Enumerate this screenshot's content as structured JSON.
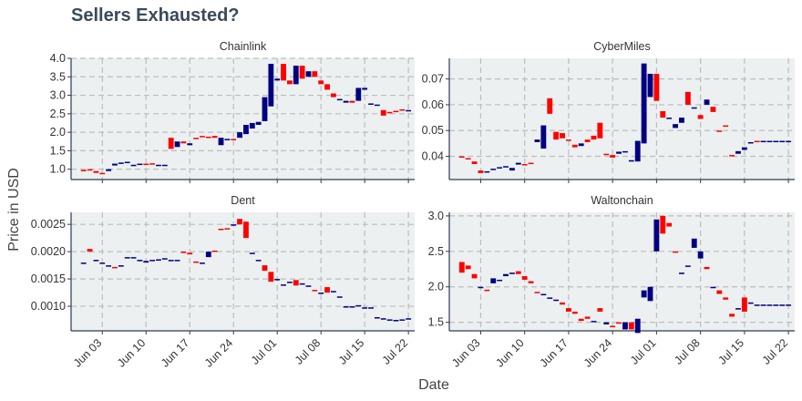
{
  "title": "Sellers Exhausted?",
  "colors": {
    "up": "#000080",
    "down": "#ff0000",
    "panel_bg": "#ecf0f1",
    "grid": "#bdbdbd",
    "axis": "#2c3e50"
  },
  "chart_data": {
    "type": "candlestick",
    "xlabel": "Date",
    "ylabel": "Price in USD",
    "grid": true,
    "x_range": [
      "2018-05-29",
      "2018-07-23"
    ],
    "x_ticks": [
      "Jun 03",
      "Jun 10",
      "Jun 17",
      "Jun 24",
      "Jul 01",
      "Jul 08",
      "Jul 15",
      "Jul 22"
    ],
    "panels": [
      {
        "name": "Chainlink",
        "ylim": [
          0.72,
          4.0
        ],
        "yticks": [
          "1.0",
          "1.5",
          "2.0",
          "2.5",
          "3.0",
          "3.5",
          "4.0"
        ],
        "dates": [
          "2018-05-31",
          "2018-06-01",
          "2018-06-02",
          "2018-06-03",
          "2018-06-04",
          "2018-06-05",
          "2018-06-06",
          "2018-06-07",
          "2018-06-08",
          "2018-06-09",
          "2018-06-10",
          "2018-06-11",
          "2018-06-12",
          "2018-06-13",
          "2018-06-14",
          "2018-06-15",
          "2018-06-16",
          "2018-06-17",
          "2018-06-18",
          "2018-06-19",
          "2018-06-20",
          "2018-06-21",
          "2018-06-22",
          "2018-06-23",
          "2018-06-24",
          "2018-06-25",
          "2018-06-26",
          "2018-06-27",
          "2018-06-28",
          "2018-06-29",
          "2018-06-30",
          "2018-07-01",
          "2018-07-02",
          "2018-07-03",
          "2018-07-04",
          "2018-07-05",
          "2018-07-06",
          "2018-07-07",
          "2018-07-08",
          "2018-07-09",
          "2018-07-10",
          "2018-07-11",
          "2018-07-12",
          "2018-07-13",
          "2018-07-14",
          "2018-07-15",
          "2018-07-16",
          "2018-07-17",
          "2018-07-18",
          "2018-07-19",
          "2018-07-20",
          "2018-07-21",
          "2018-07-22"
        ],
        "open": [
          0.98,
          1.0,
          0.95,
          0.9,
          0.95,
          1.1,
          1.15,
          1.18,
          1.1,
          1.13,
          1.15,
          1.16,
          1.12,
          1.1,
          1.85,
          1.6,
          1.75,
          1.65,
          1.85,
          1.9,
          1.88,
          1.9,
          1.65,
          1.8,
          1.82,
          1.85,
          1.95,
          2.1,
          2.2,
          2.3,
          2.7,
          3.4,
          3.85,
          3.4,
          3.3,
          3.8,
          3.5,
          3.65,
          3.4,
          3.3,
          3.05,
          2.9,
          2.8,
          2.85,
          2.85,
          3.15,
          2.78,
          2.75,
          2.6,
          2.55,
          2.58,
          2.62,
          2.6
        ],
        "close": [
          0.96,
          0.97,
          0.9,
          0.88,
          1.0,
          1.15,
          1.18,
          1.2,
          1.12,
          1.15,
          1.13,
          1.14,
          1.12,
          1.12,
          1.55,
          1.75,
          1.7,
          1.7,
          1.82,
          1.87,
          1.85,
          1.85,
          1.85,
          1.82,
          1.8,
          2.0,
          2.2,
          2.25,
          2.28,
          2.95,
          3.85,
          3.45,
          3.4,
          3.3,
          3.8,
          3.45,
          3.65,
          3.5,
          3.3,
          3.15,
          2.95,
          2.9,
          2.85,
          2.8,
          3.2,
          3.2,
          2.78,
          2.75,
          2.45,
          2.52,
          2.55,
          2.6,
          2.6
        ]
      },
      {
        "name": "CyberMiles",
        "ylim": [
          0.031,
          0.078
        ],
        "yticks": [
          "0.04",
          "0.05",
          "0.06",
          "0.07"
        ],
        "dates": [
          "2018-05-31",
          "2018-06-01",
          "2018-06-02",
          "2018-06-03",
          "2018-06-04",
          "2018-06-05",
          "2018-06-06",
          "2018-06-07",
          "2018-06-08",
          "2018-06-09",
          "2018-06-10",
          "2018-06-11",
          "2018-06-12",
          "2018-06-13",
          "2018-06-14",
          "2018-06-15",
          "2018-06-16",
          "2018-06-17",
          "2018-06-18",
          "2018-06-19",
          "2018-06-20",
          "2018-06-21",
          "2018-06-22",
          "2018-06-23",
          "2018-06-24",
          "2018-06-25",
          "2018-06-26",
          "2018-06-27",
          "2018-06-28",
          "2018-06-29",
          "2018-06-30",
          "2018-07-01",
          "2018-07-02",
          "2018-07-03",
          "2018-07-04",
          "2018-07-05",
          "2018-07-06",
          "2018-07-07",
          "2018-07-08",
          "2018-07-09",
          "2018-07-10",
          "2018-07-11",
          "2018-07-12",
          "2018-07-13",
          "2018-07-14",
          "2018-07-15",
          "2018-07-16",
          "2018-07-17",
          "2018-07-18",
          "2018-07-19",
          "2018-07-20",
          "2018-07-21",
          "2018-07-22"
        ],
        "open": [
          0.04,
          0.0393,
          0.038,
          0.0345,
          0.034,
          0.035,
          0.0355,
          0.036,
          0.0345,
          0.0368,
          0.037,
          0.0375,
          0.0455,
          0.043,
          0.0625,
          0.0495,
          0.049,
          0.0465,
          0.0445,
          0.044,
          0.0465,
          0.048,
          0.053,
          0.041,
          0.0405,
          0.041,
          0.0415,
          0.038,
          0.038,
          0.045,
          0.063,
          0.072,
          0.0575,
          0.055,
          0.051,
          0.053,
          0.065,
          0.059,
          0.056,
          0.06,
          0.0592,
          0.05,
          0.052,
          0.0405,
          0.041,
          0.0425,
          0.045,
          0.046,
          0.046,
          0.046,
          0.046,
          0.046,
          0.046
        ],
        "close": [
          0.0398,
          0.0388,
          0.037,
          0.0335,
          0.0342,
          0.0352,
          0.0358,
          0.0362,
          0.0355,
          0.0375,
          0.0365,
          0.037,
          0.0465,
          0.052,
          0.0565,
          0.0465,
          0.047,
          0.046,
          0.0435,
          0.045,
          0.0455,
          0.0465,
          0.047,
          0.0405,
          0.0395,
          0.0418,
          0.042,
          0.0385,
          0.046,
          0.076,
          0.072,
          0.0615,
          0.055,
          0.055,
          0.0525,
          0.055,
          0.06,
          0.059,
          0.0545,
          0.062,
          0.0572,
          0.0495,
          0.0515,
          0.04,
          0.042,
          0.0435,
          0.0455,
          0.0458,
          0.046,
          0.046,
          0.046,
          0.046,
          0.046
        ]
      },
      {
        "name": "Dent",
        "ylim": [
          0.00055,
          0.00272
        ],
        "yticks": [
          "0.0010",
          "0.0015",
          "0.0020",
          "0.0025"
        ],
        "dates": [
          "2018-05-31",
          "2018-06-01",
          "2018-06-02",
          "2018-06-03",
          "2018-06-04",
          "2018-06-05",
          "2018-06-06",
          "2018-06-07",
          "2018-06-08",
          "2018-06-09",
          "2018-06-10",
          "2018-06-11",
          "2018-06-12",
          "2018-06-13",
          "2018-06-14",
          "2018-06-15",
          "2018-06-16",
          "2018-06-17",
          "2018-06-18",
          "2018-06-19",
          "2018-06-20",
          "2018-06-21",
          "2018-06-22",
          "2018-06-23",
          "2018-06-24",
          "2018-06-25",
          "2018-06-26",
          "2018-06-27",
          "2018-06-28",
          "2018-06-29",
          "2018-06-30",
          "2018-07-01",
          "2018-07-02",
          "2018-07-03",
          "2018-07-04",
          "2018-07-05",
          "2018-07-06",
          "2018-07-07",
          "2018-07-08",
          "2018-07-09",
          "2018-07-10",
          "2018-07-11",
          "2018-07-12",
          "2018-07-13",
          "2018-07-14",
          "2018-07-15",
          "2018-07-16",
          "2018-07-17",
          "2018-07-18",
          "2018-07-19",
          "2018-07-20",
          "2018-07-21",
          "2018-07-22"
        ],
        "open": [
          0.0018,
          0.00205,
          0.00185,
          0.0018,
          0.00175,
          0.00172,
          0.00175,
          0.00188,
          0.0019,
          0.00185,
          0.0018,
          0.00185,
          0.00186,
          0.00188,
          0.00185,
          0.00185,
          0.002,
          0.00198,
          0.00182,
          0.0018,
          0.0019,
          0.00202,
          0.00242,
          0.00243,
          0.0025,
          0.0026,
          0.00255,
          0.00198,
          0.00185,
          0.00175,
          0.00163,
          0.0015,
          0.0014,
          0.00145,
          0.00148,
          0.00142,
          0.00138,
          0.0013,
          0.00125,
          0.00135,
          0.00128,
          0.00118,
          0.001,
          0.001,
          0.00102,
          0.00098,
          0.00098,
          0.0008,
          0.00078,
          0.00076,
          0.00075,
          0.00076,
          0.00078
        ],
        "close": [
          0.0018,
          0.002,
          0.00185,
          0.0018,
          0.00175,
          0.0017,
          0.00175,
          0.0019,
          0.0019,
          0.00185,
          0.00183,
          0.00185,
          0.00186,
          0.00188,
          0.00185,
          0.00185,
          0.00198,
          0.00195,
          0.0018,
          0.0018,
          0.002,
          0.002,
          0.0024,
          0.00241,
          0.0025,
          0.0025,
          0.00225,
          0.00198,
          0.00185,
          0.00165,
          0.00145,
          0.0015,
          0.0014,
          0.00145,
          0.00138,
          0.00142,
          0.00138,
          0.00128,
          0.00125,
          0.00125,
          0.00128,
          0.00118,
          0.001,
          0.001,
          0.00102,
          0.00098,
          0.00098,
          0.0008,
          0.00078,
          0.00076,
          0.00075,
          0.00076,
          0.00078
        ]
      },
      {
        "name": "Waltonchain",
        "ylim": [
          1.38,
          3.05
        ],
        "yticks": [
          "1.5",
          "2.0",
          "2.5",
          "3.0"
        ],
        "dates": [
          "2018-05-31",
          "2018-06-01",
          "2018-06-02",
          "2018-06-03",
          "2018-06-04",
          "2018-06-05",
          "2018-06-06",
          "2018-06-07",
          "2018-06-08",
          "2018-06-09",
          "2018-06-10",
          "2018-06-11",
          "2018-06-12",
          "2018-06-13",
          "2018-06-14",
          "2018-06-15",
          "2018-06-16",
          "2018-06-17",
          "2018-06-18",
          "2018-06-19",
          "2018-06-20",
          "2018-06-21",
          "2018-06-22",
          "2018-06-23",
          "2018-06-24",
          "2018-06-25",
          "2018-06-26",
          "2018-06-27",
          "2018-06-28",
          "2018-06-29",
          "2018-06-30",
          "2018-07-01",
          "2018-07-02",
          "2018-07-03",
          "2018-07-04",
          "2018-07-05",
          "2018-07-06",
          "2018-07-07",
          "2018-07-08",
          "2018-07-09",
          "2018-07-10",
          "2018-07-11",
          "2018-07-12",
          "2018-07-13",
          "2018-07-14",
          "2018-07-15",
          "2018-07-16",
          "2018-07-17",
          "2018-07-18",
          "2018-07-19",
          "2018-07-20",
          "2018-07-21",
          "2018-07-22"
        ],
        "open": [
          2.35,
          2.3,
          2.18,
          2.0,
          1.96,
          2.05,
          2.1,
          2.15,
          2.18,
          2.22,
          2.15,
          2.08,
          1.93,
          1.9,
          1.85,
          1.82,
          1.78,
          1.7,
          1.65,
          1.55,
          1.58,
          1.52,
          1.7,
          1.47,
          1.45,
          1.5,
          1.4,
          1.5,
          1.35,
          1.85,
          1.8,
          2.5,
          3.0,
          2.9,
          2.5,
          2.18,
          2.3,
          2.55,
          2.4,
          2.28,
          2.0,
          1.95,
          1.85,
          1.62,
          1.68,
          1.85,
          1.78,
          1.75,
          1.75,
          1.75,
          1.75,
          1.75,
          1.75
        ],
        "close": [
          2.2,
          2.25,
          2.12,
          2.0,
          1.95,
          2.12,
          2.1,
          2.18,
          2.2,
          2.18,
          2.1,
          2.05,
          1.92,
          1.9,
          1.85,
          1.82,
          1.75,
          1.65,
          1.62,
          1.52,
          1.55,
          1.52,
          1.65,
          1.5,
          1.43,
          1.48,
          1.5,
          1.4,
          1.55,
          1.95,
          2.0,
          2.95,
          2.75,
          2.85,
          2.48,
          2.2,
          2.3,
          2.68,
          2.5,
          2.25,
          2.0,
          1.9,
          1.82,
          1.58,
          1.7,
          1.65,
          1.78,
          1.75,
          1.75,
          1.75,
          1.75,
          1.75,
          1.75
        ]
      }
    ]
  }
}
